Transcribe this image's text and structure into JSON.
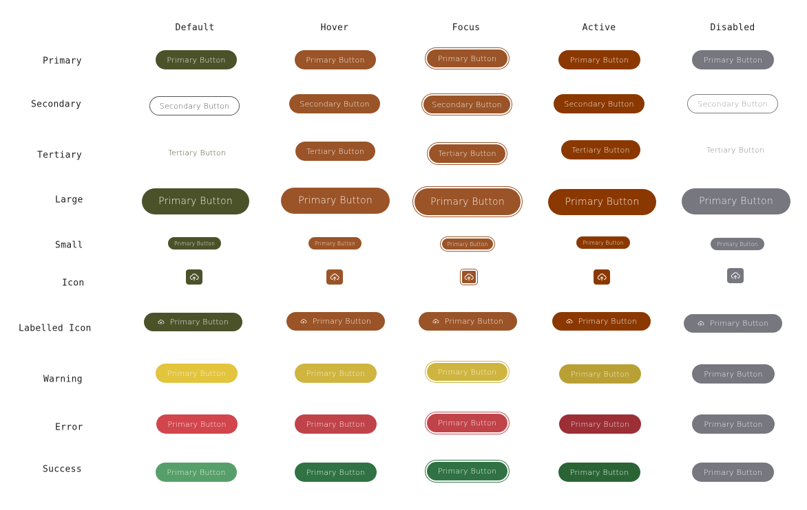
{
  "columns": {
    "default": "Default",
    "hover": "Hover",
    "focus": "Focus",
    "active": "Active",
    "disabled": "Disabled"
  },
  "rows": {
    "primary": "Primary",
    "secondary": "Secondary",
    "tertiary": "Tertiary",
    "large": "Large",
    "small": "Small",
    "icon": "Icon",
    "labelled_icon": "Labelled Icon",
    "warning": "Warning",
    "error": "Error",
    "success": "Success"
  },
  "labels": {
    "primary": "Primary Button",
    "secondary": "Secondary Button",
    "tertiary": "Tertiary Button"
  },
  "icons": {
    "cloud": "cloud-upload-icon"
  },
  "colors": {
    "primary_default": "#4b522a",
    "brown_hover": "#9a5428",
    "brown_active": "#8b3800",
    "disabled": "#76777f",
    "warning_default": "#e3c43d",
    "warning_hover": "#cfb540",
    "warning_active": "#b9a035",
    "error_default": "#d2454d",
    "error_hover": "#c0434a",
    "error_active": "#9b2f35",
    "success_default": "#579f6a",
    "success_hover": "#307243",
    "success_active": "#2a6435",
    "outline": "#6a6a6a"
  }
}
